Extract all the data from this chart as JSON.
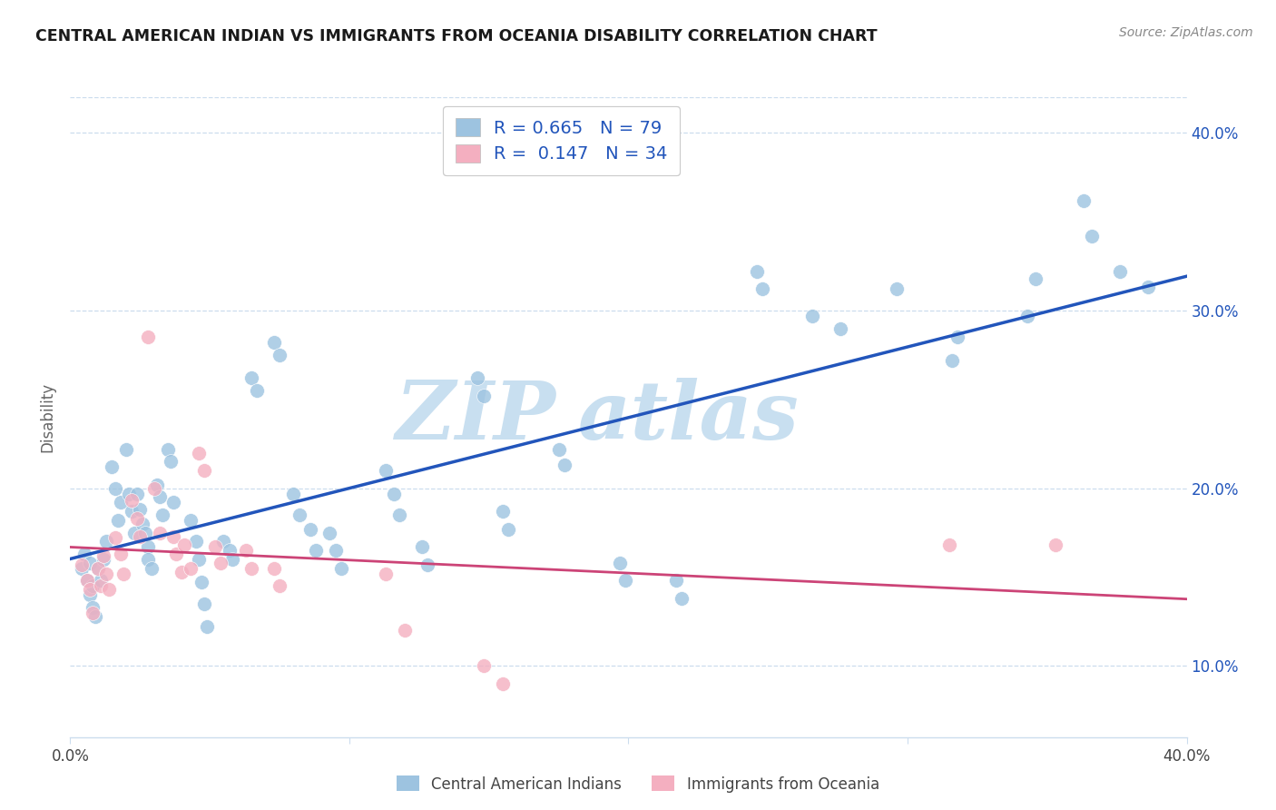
{
  "title": "CENTRAL AMERICAN INDIAN VS IMMIGRANTS FROM OCEANIA DISABILITY CORRELATION CHART",
  "source": "Source: ZipAtlas.com",
  "ylabel": "Disability",
  "xmin": 0.0,
  "xmax": 0.4,
  "ymin": 0.06,
  "ymax": 0.42,
  "blue_R": "0.665",
  "blue_N": "79",
  "pink_R": "0.147",
  "pink_N": "34",
  "blue_scatter_color": "#9dc3e0",
  "pink_scatter_color": "#f4afc0",
  "blue_line_color": "#2255bb",
  "pink_line_color": "#cc4477",
  "grid_color": "#ccddee",
  "blue_scatter": [
    [
      0.004,
      0.155
    ],
    [
      0.005,
      0.163
    ],
    [
      0.006,
      0.148
    ],
    [
      0.007,
      0.14
    ],
    [
      0.007,
      0.158
    ],
    [
      0.008,
      0.145
    ],
    [
      0.008,
      0.133
    ],
    [
      0.009,
      0.128
    ],
    [
      0.01,
      0.155
    ],
    [
      0.011,
      0.148
    ],
    [
      0.012,
      0.16
    ],
    [
      0.013,
      0.17
    ],
    [
      0.015,
      0.212
    ],
    [
      0.016,
      0.2
    ],
    [
      0.017,
      0.182
    ],
    [
      0.018,
      0.192
    ],
    [
      0.02,
      0.222
    ],
    [
      0.021,
      0.197
    ],
    [
      0.022,
      0.187
    ],
    [
      0.023,
      0.175
    ],
    [
      0.024,
      0.197
    ],
    [
      0.025,
      0.188
    ],
    [
      0.026,
      0.18
    ],
    [
      0.027,
      0.175
    ],
    [
      0.028,
      0.167
    ],
    [
      0.028,
      0.16
    ],
    [
      0.029,
      0.155
    ],
    [
      0.031,
      0.202
    ],
    [
      0.032,
      0.195
    ],
    [
      0.033,
      0.185
    ],
    [
      0.035,
      0.222
    ],
    [
      0.036,
      0.215
    ],
    [
      0.037,
      0.192
    ],
    [
      0.043,
      0.182
    ],
    [
      0.045,
      0.17
    ],
    [
      0.046,
      0.16
    ],
    [
      0.047,
      0.147
    ],
    [
      0.048,
      0.135
    ],
    [
      0.049,
      0.122
    ],
    [
      0.055,
      0.17
    ],
    [
      0.057,
      0.165
    ],
    [
      0.058,
      0.16
    ],
    [
      0.065,
      0.262
    ],
    [
      0.067,
      0.255
    ],
    [
      0.073,
      0.282
    ],
    [
      0.075,
      0.275
    ],
    [
      0.08,
      0.197
    ],
    [
      0.082,
      0.185
    ],
    [
      0.086,
      0.177
    ],
    [
      0.088,
      0.165
    ],
    [
      0.093,
      0.175
    ],
    [
      0.095,
      0.165
    ],
    [
      0.097,
      0.155
    ],
    [
      0.113,
      0.21
    ],
    [
      0.116,
      0.197
    ],
    [
      0.118,
      0.185
    ],
    [
      0.126,
      0.167
    ],
    [
      0.128,
      0.157
    ],
    [
      0.146,
      0.262
    ],
    [
      0.148,
      0.252
    ],
    [
      0.155,
      0.187
    ],
    [
      0.157,
      0.177
    ],
    [
      0.175,
      0.222
    ],
    [
      0.177,
      0.213
    ],
    [
      0.197,
      0.158
    ],
    [
      0.199,
      0.148
    ],
    [
      0.217,
      0.148
    ],
    [
      0.219,
      0.138
    ],
    [
      0.246,
      0.322
    ],
    [
      0.248,
      0.312
    ],
    [
      0.266,
      0.297
    ],
    [
      0.276,
      0.29
    ],
    [
      0.296,
      0.312
    ],
    [
      0.316,
      0.272
    ],
    [
      0.318,
      0.285
    ],
    [
      0.343,
      0.297
    ],
    [
      0.346,
      0.318
    ],
    [
      0.363,
      0.362
    ],
    [
      0.366,
      0.342
    ],
    [
      0.376,
      0.322
    ],
    [
      0.386,
      0.313
    ]
  ],
  "pink_scatter": [
    [
      0.004,
      0.157
    ],
    [
      0.006,
      0.148
    ],
    [
      0.007,
      0.143
    ],
    [
      0.008,
      0.13
    ],
    [
      0.01,
      0.155
    ],
    [
      0.011,
      0.145
    ],
    [
      0.012,
      0.162
    ],
    [
      0.013,
      0.152
    ],
    [
      0.014,
      0.143
    ],
    [
      0.016,
      0.172
    ],
    [
      0.018,
      0.163
    ],
    [
      0.019,
      0.152
    ],
    [
      0.022,
      0.193
    ],
    [
      0.024,
      0.183
    ],
    [
      0.025,
      0.173
    ],
    [
      0.028,
      0.285
    ],
    [
      0.03,
      0.2
    ],
    [
      0.032,
      0.175
    ],
    [
      0.037,
      0.173
    ],
    [
      0.038,
      0.163
    ],
    [
      0.04,
      0.153
    ],
    [
      0.041,
      0.168
    ],
    [
      0.043,
      0.155
    ],
    [
      0.046,
      0.22
    ],
    [
      0.048,
      0.21
    ],
    [
      0.052,
      0.167
    ],
    [
      0.054,
      0.158
    ],
    [
      0.063,
      0.165
    ],
    [
      0.065,
      0.155
    ],
    [
      0.073,
      0.155
    ],
    [
      0.075,
      0.145
    ],
    [
      0.113,
      0.152
    ],
    [
      0.12,
      0.12
    ],
    [
      0.148,
      0.1
    ],
    [
      0.155,
      0.09
    ],
    [
      0.315,
      0.168
    ],
    [
      0.353,
      0.168
    ]
  ]
}
